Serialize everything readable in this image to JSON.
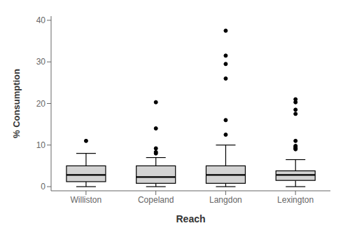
{
  "chart_data": {
    "type": "box",
    "xlabel": "Reach",
    "ylabel": "% Consumption",
    "categories": [
      "Williston",
      "Copeland",
      "Langdon",
      "Lexington"
    ],
    "boxes": [
      {
        "q1": 1.2,
        "median": 2.8,
        "q3": 5.0,
        "whislo": 0.0,
        "whishi": 8.0,
        "fliers": [
          11.0
        ]
      },
      {
        "q1": 0.8,
        "median": 2.3,
        "q3": 5.0,
        "whislo": 0.0,
        "whishi": 7.0,
        "fliers": [
          8.0,
          8.3,
          9.2,
          14.0,
          20.3
        ]
      },
      {
        "q1": 0.8,
        "median": 2.8,
        "q3": 5.0,
        "whislo": 0.0,
        "whishi": 10.0,
        "fliers": [
          12.5,
          16.0,
          26.0,
          29.5,
          31.5,
          37.5
        ]
      },
      {
        "q1": 1.5,
        "median": 2.8,
        "q3": 3.8,
        "whislo": 0.0,
        "whishi": 6.5,
        "fliers": [
          9.0,
          9.2,
          9.5,
          9.8,
          11.0,
          17.5,
          18.5,
          20.3,
          21.0
        ]
      }
    ],
    "ylim": [
      -1,
      41
    ],
    "yticks": [
      0,
      10,
      20,
      30,
      40
    ],
    "color": "#d3d3d3",
    "grid": false
  }
}
